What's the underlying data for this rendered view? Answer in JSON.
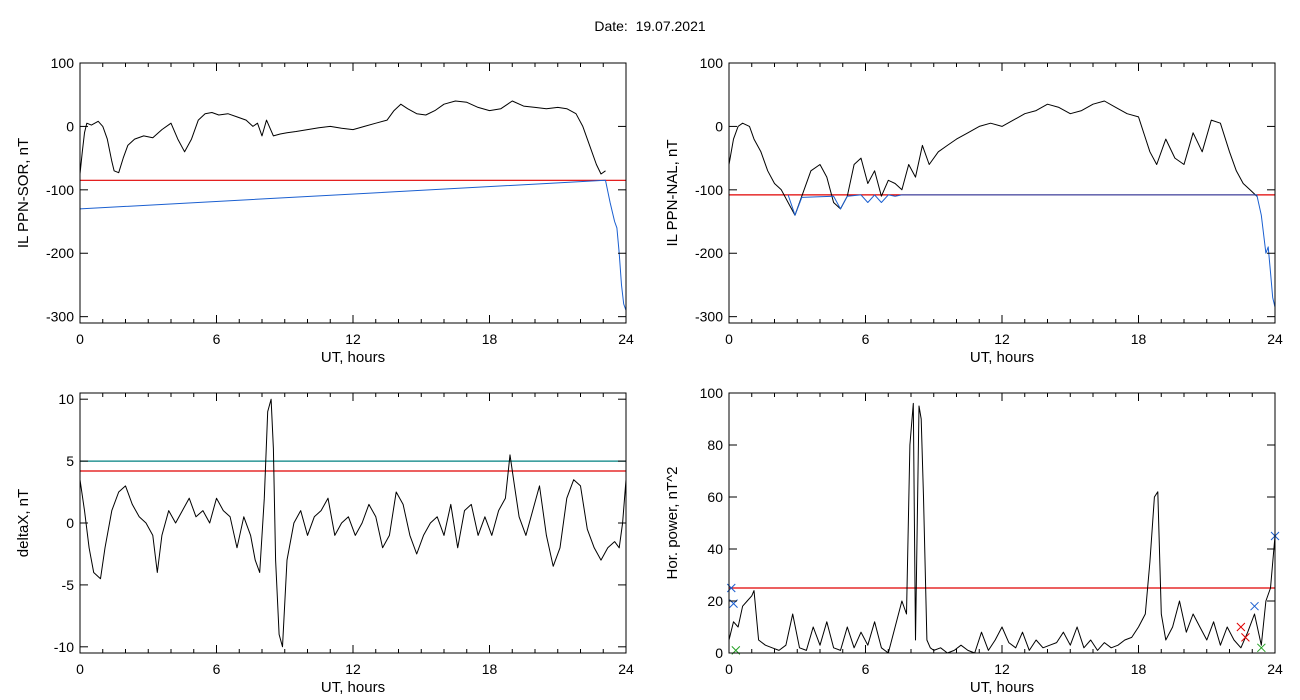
{
  "figure": {
    "date_label": "Date:",
    "date_value": "19.07.2021"
  },
  "colors": {
    "trace": "#000000",
    "threshold_red": "#e00000",
    "threshold_teal": "#008080",
    "highlight_blue": "#1a5fd0"
  },
  "chart_data": [
    {
      "id": "ppn-sor",
      "type": "line",
      "xlabel": "UT, hours",
      "ylabel": "IL PPN-SOR, nT",
      "xlim": [
        0,
        24
      ],
      "ylim": [
        -310,
        100
      ],
      "xticks": [
        0,
        6,
        12,
        18,
        24
      ],
      "yticks": [
        100,
        0,
        -100,
        -200,
        -300
      ],
      "series": [
        {
          "color": "#000000",
          "x": [
            0,
            0.1,
            0.2,
            0.3,
            0.5,
            0.8,
            1.0,
            1.2,
            1.4,
            1.5,
            1.7,
            1.9,
            2.1,
            2.4,
            2.8,
            3.2,
            3.6,
            4.0,
            4.3,
            4.6,
            4.9,
            5.2,
            5.5,
            5.8,
            6.1,
            6.5,
            6.9,
            7.3,
            7.6,
            7.8,
            8.0,
            8.2,
            8.5,
            8.8,
            9.1,
            9.5,
            10.0,
            10.5,
            11.0,
            11.5,
            12.0,
            12.5,
            13.0,
            13.5,
            13.8,
            14.1,
            14.4,
            14.8,
            15.2,
            15.6,
            16.0,
            16.5,
            17.0,
            17.5,
            18.0,
            18.5,
            19.0,
            19.5,
            20.0,
            20.5,
            21.0,
            21.4,
            21.8,
            22.1,
            22.4,
            22.7,
            22.9,
            23.1
          ],
          "y": [
            -75,
            -40,
            -10,
            5,
            2,
            8,
            0,
            -20,
            -55,
            -70,
            -73,
            -50,
            -30,
            -20,
            -15,
            -18,
            -5,
            5,
            -20,
            -40,
            -20,
            10,
            20,
            22,
            18,
            20,
            15,
            10,
            0,
            5,
            -15,
            10,
            -15,
            -12,
            -10,
            -8,
            -5,
            -2,
            0,
            -3,
            -5,
            0,
            5,
            10,
            25,
            35,
            28,
            20,
            18,
            25,
            35,
            40,
            38,
            30,
            25,
            28,
            40,
            32,
            30,
            28,
            30,
            28,
            20,
            0,
            -30,
            -60,
            -75,
            -70
          ]
        },
        {
          "color": "#1a5fd0",
          "x": [
            0,
            23.1,
            23.3,
            23.5,
            23.6,
            23.7,
            23.8,
            23.9,
            24.0
          ],
          "y": [
            -130,
            -85,
            -120,
            -150,
            -160,
            -200,
            -250,
            -280,
            -290
          ]
        }
      ],
      "thresholds": [
        {
          "value": -85,
          "color": "#e00000"
        }
      ]
    },
    {
      "id": "ppn-nal",
      "type": "line",
      "xlabel": "UT, hours",
      "ylabel": "IL PPN-NAL, nT",
      "xlim": [
        0,
        24
      ],
      "ylim": [
        -310,
        100
      ],
      "xticks": [
        0,
        6,
        12,
        18,
        24
      ],
      "yticks": [
        100,
        0,
        -100,
        -200,
        -300
      ],
      "series": [
        {
          "color": "#000000",
          "x": [
            0,
            0.2,
            0.4,
            0.6,
            0.9,
            1.1,
            1.4,
            1.7,
            2.0,
            2.3,
            2.6,
            2.9,
            3.2,
            3.6,
            4.0,
            4.3,
            4.6,
            4.9,
            5.2,
            5.5,
            5.8,
            6.1,
            6.4,
            6.7,
            7.0,
            7.3,
            7.6,
            7.9,
            8.2,
            8.5,
            8.8,
            9.2,
            9.6,
            10.0,
            10.5,
            11.0,
            11.5,
            12.0,
            12.5,
            13.0,
            13.5,
            14.0,
            14.5,
            15.0,
            15.5,
            16.0,
            16.5,
            17.0,
            17.5,
            18.0,
            18.5,
            18.8,
            19.2,
            19.6,
            20.0,
            20.4,
            20.8,
            21.2,
            21.6,
            22.0,
            22.3,
            22.6,
            22.9,
            23.2
          ],
          "y": [
            -60,
            -20,
            0,
            5,
            0,
            -20,
            -40,
            -70,
            -90,
            -100,
            -120,
            -140,
            -110,
            -70,
            -60,
            -80,
            -120,
            -130,
            -110,
            -60,
            -50,
            -90,
            -70,
            -110,
            -85,
            -90,
            -100,
            -60,
            -80,
            -30,
            -60,
            -40,
            -30,
            -20,
            -10,
            0,
            5,
            0,
            10,
            20,
            25,
            35,
            30,
            20,
            25,
            35,
            40,
            30,
            20,
            15,
            -40,
            -60,
            -20,
            -50,
            -60,
            -10,
            -40,
            10,
            5,
            -40,
            -70,
            -90,
            -100,
            -110
          ]
        },
        {
          "color": "#1a5fd0",
          "x": [
            2.6,
            2.9,
            3.2,
            4.6,
            4.9,
            5.2,
            5.8,
            6.1,
            6.4,
            6.7,
            7.0,
            7.3,
            7.6,
            23.2,
            23.4,
            23.6,
            23.7,
            23.8,
            23.9,
            24.0
          ],
          "y": [
            -108,
            -140,
            -112,
            -110,
            -130,
            -110,
            -108,
            -120,
            -108,
            -120,
            -108,
            -110,
            -108,
            -108,
            -140,
            -200,
            -190,
            -230,
            -270,
            -285
          ]
        }
      ],
      "thresholds": [
        {
          "value": -108,
          "color": "#e00000"
        }
      ]
    },
    {
      "id": "deltax",
      "type": "line",
      "xlabel": "UT, hours",
      "ylabel": "deltaX, nT",
      "xlim": [
        0,
        24
      ],
      "ylim": [
        -10.5,
        10.5
      ],
      "xticks": [
        0,
        6,
        12,
        18,
        24
      ],
      "yticks": [
        10,
        5,
        0,
        -5,
        -10
      ],
      "series": [
        {
          "color": "#000000",
          "x": [
            0,
            0.2,
            0.4,
            0.6,
            0.9,
            1.1,
            1.4,
            1.7,
            2.0,
            2.3,
            2.6,
            2.9,
            3.2,
            3.4,
            3.6,
            3.9,
            4.2,
            4.5,
            4.8,
            5.1,
            5.4,
            5.7,
            6.0,
            6.3,
            6.6,
            6.9,
            7.2,
            7.5,
            7.7,
            7.9,
            8.1,
            8.25,
            8.4,
            8.5,
            8.6,
            8.75,
            8.9,
            9.1,
            9.4,
            9.7,
            10.0,
            10.3,
            10.6,
            10.9,
            11.2,
            11.5,
            11.8,
            12.1,
            12.4,
            12.7,
            13.0,
            13.3,
            13.6,
            13.9,
            14.2,
            14.5,
            14.8,
            15.1,
            15.4,
            15.7,
            16.0,
            16.3,
            16.6,
            16.9,
            17.2,
            17.5,
            17.8,
            18.1,
            18.4,
            18.7,
            18.9,
            19.1,
            19.3,
            19.6,
            19.9,
            20.2,
            20.5,
            20.8,
            21.1,
            21.4,
            21.7,
            22.0,
            22.3,
            22.6,
            22.9,
            23.2,
            23.5,
            23.7,
            23.85,
            24.0
          ],
          "y": [
            3.5,
            1,
            -2,
            -4,
            -4.5,
            -2,
            1,
            2.5,
            3,
            1.5,
            0.5,
            0,
            -1,
            -4,
            -1,
            1,
            0,
            1,
            2,
            0.5,
            1,
            0,
            2,
            1,
            0.5,
            -2,
            0.5,
            -1,
            -3,
            -4,
            2,
            9,
            10,
            6,
            -3,
            -9,
            -10,
            -3,
            0,
            1,
            -1,
            0.5,
            1,
            2,
            -1,
            0,
            0.5,
            -1,
            0,
            1.5,
            0.5,
            -2,
            -1,
            2.5,
            1.5,
            -1,
            -2.5,
            -1,
            0,
            0.5,
            -1,
            1.5,
            -2,
            1,
            1.5,
            -1,
            0.5,
            -1,
            1,
            2,
            5.5,
            3,
            0.5,
            -1,
            1,
            3,
            -1,
            -3.5,
            -2,
            2,
            3.5,
            3,
            -0.5,
            -2,
            -3,
            -2,
            -1.5,
            -2,
            0,
            3.5
          ]
        }
      ],
      "thresholds": [
        {
          "value": 5,
          "color": "#008080"
        },
        {
          "value": 4.2,
          "color": "#e00000"
        }
      ]
    },
    {
      "id": "hor-power",
      "type": "line",
      "xlabel": "UT, hours",
      "ylabel": "Hor. power, nT^2",
      "xlim": [
        0,
        24
      ],
      "ylim": [
        0,
        100
      ],
      "xticks": [
        0,
        6,
        12,
        18,
        24
      ],
      "yticks": [
        100,
        80,
        60,
        40,
        20,
        0
      ],
      "series": [
        {
          "color": "#000000",
          "x": [
            0,
            0.2,
            0.4,
            0.6,
            0.8,
            1.0,
            1.1,
            1.3,
            1.6,
            1.9,
            2.2,
            2.5,
            2.8,
            3.1,
            3.4,
            3.7,
            4.0,
            4.3,
            4.6,
            4.9,
            5.2,
            5.5,
            5.8,
            6.1,
            6.4,
            6.7,
            7.0,
            7.3,
            7.6,
            7.8,
            7.95,
            8.1,
            8.2,
            8.35,
            8.45,
            8.55,
            8.7,
            8.85,
            9.0,
            9.3,
            9.6,
            9.9,
            10.2,
            10.5,
            10.8,
            11.1,
            11.4,
            11.7,
            12.0,
            12.3,
            12.6,
            12.9,
            13.2,
            13.5,
            13.8,
            14.1,
            14.4,
            14.7,
            15.0,
            15.3,
            15.6,
            15.9,
            16.2,
            16.5,
            16.8,
            17.1,
            17.4,
            17.7,
            18.0,
            18.3,
            18.5,
            18.7,
            18.85,
            19.0,
            19.2,
            19.5,
            19.8,
            20.1,
            20.4,
            20.7,
            21.0,
            21.3,
            21.6,
            21.9,
            22.2,
            22.5,
            22.8,
            23.1,
            23.4,
            23.6,
            23.8,
            24.0
          ],
          "y": [
            5,
            12,
            10,
            18,
            20,
            22,
            24,
            5,
            3,
            2,
            1,
            3,
            15,
            2,
            1,
            10,
            3,
            12,
            2,
            1,
            10,
            2,
            8,
            3,
            12,
            2,
            0,
            10,
            20,
            15,
            80,
            96,
            5,
            95,
            90,
            60,
            5,
            2,
            1,
            2,
            0,
            1,
            3,
            1,
            0,
            8,
            1,
            5,
            10,
            4,
            2,
            8,
            1,
            5,
            2,
            3,
            4,
            8,
            3,
            10,
            2,
            5,
            1,
            4,
            2,
            3,
            5,
            6,
            10,
            15,
            35,
            60,
            62,
            15,
            5,
            10,
            20,
            8,
            15,
            10,
            5,
            12,
            3,
            10,
            5,
            2,
            8,
            15,
            3,
            20,
            25,
            45
          ]
        }
      ],
      "thresholds": [
        {
          "value": 25,
          "color": "#e00000"
        }
      ],
      "markers": [
        {
          "x": 0.1,
          "y": 25,
          "symbol": "x",
          "color": "#1a5fd0"
        },
        {
          "x": 0.2,
          "y": 19,
          "symbol": "x",
          "color": "#1a5fd0"
        },
        {
          "x": 0.3,
          "y": 1,
          "symbol": "x",
          "color": "#22a022"
        },
        {
          "x": 22.5,
          "y": 10,
          "symbol": "x",
          "color": "#e00000"
        },
        {
          "x": 22.7,
          "y": 6,
          "symbol": "x",
          "color": "#e00000"
        },
        {
          "x": 23.1,
          "y": 18,
          "symbol": "x",
          "color": "#1a5fd0"
        },
        {
          "x": 23.4,
          "y": 2,
          "symbol": "x",
          "color": "#22a022"
        },
        {
          "x": 24.0,
          "y": 45,
          "symbol": "x",
          "color": "#1a5fd0"
        }
      ]
    }
  ]
}
